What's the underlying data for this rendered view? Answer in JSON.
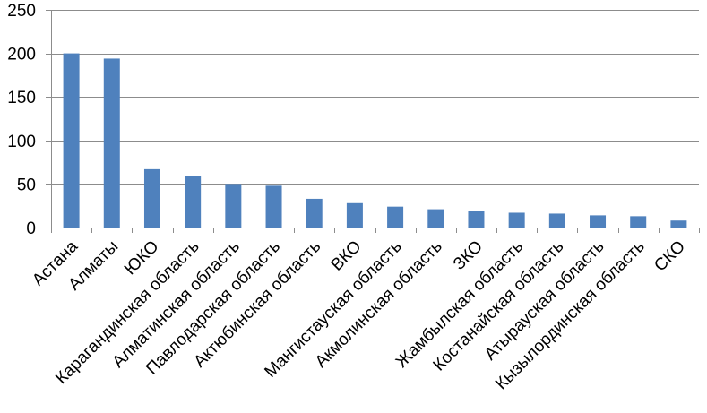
{
  "chart_data": {
    "type": "bar",
    "title": "",
    "xlabel": "",
    "ylabel": "",
    "ylim": [
      0,
      250
    ],
    "yticks": [
      0,
      50,
      100,
      150,
      200,
      250
    ],
    "grid": true,
    "legend": "none",
    "bar_color": "#4F81BD",
    "grid_color": "#8C8C8C",
    "categories": [
      "Астана",
      "Алматы",
      "ЮКО",
      "Карагандинская область",
      "Алматинская область",
      "Павлодарская область",
      "Актюбинская область",
      "ВКО",
      "Мангистауская область",
      "Акмолинская область",
      "ЗКО",
      "Жамбылская область",
      "Костанайская область",
      "Атырауская область",
      "Кызылординская область",
      "СКО"
    ],
    "values": [
      200,
      194,
      67,
      59,
      50,
      48,
      33,
      28,
      24,
      21,
      19,
      17,
      16,
      14,
      13,
      8
    ]
  }
}
